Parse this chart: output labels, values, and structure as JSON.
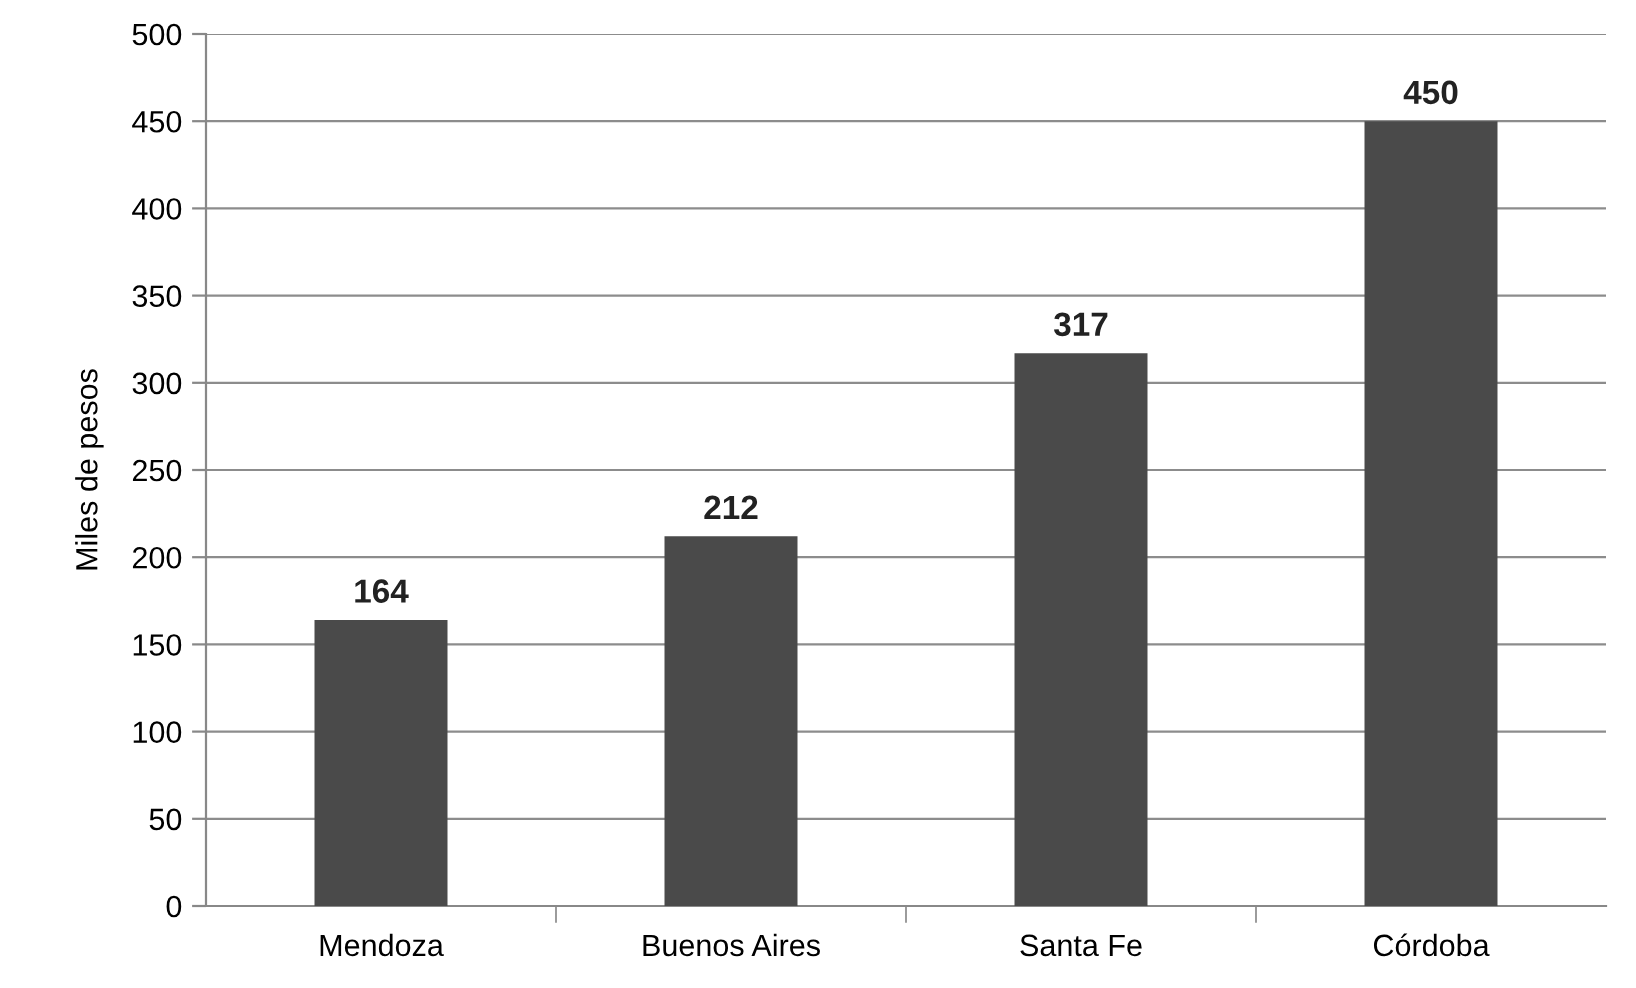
{
  "chart_data": {
    "type": "bar",
    "ylabel": "Miles de pesos",
    "categories": [
      "Mendoza",
      "Buenos Aires",
      "Santa Fe",
      "Córdoba"
    ],
    "values": [
      164,
      212,
      317,
      450
    ],
    "color": "#4a4a4a",
    "ylim": [
      0,
      500
    ],
    "yticks": [
      0,
      50,
      100,
      150,
      200,
      250,
      300,
      350,
      400,
      450,
      500
    ],
    "grid": "y",
    "data_labels": true
  }
}
